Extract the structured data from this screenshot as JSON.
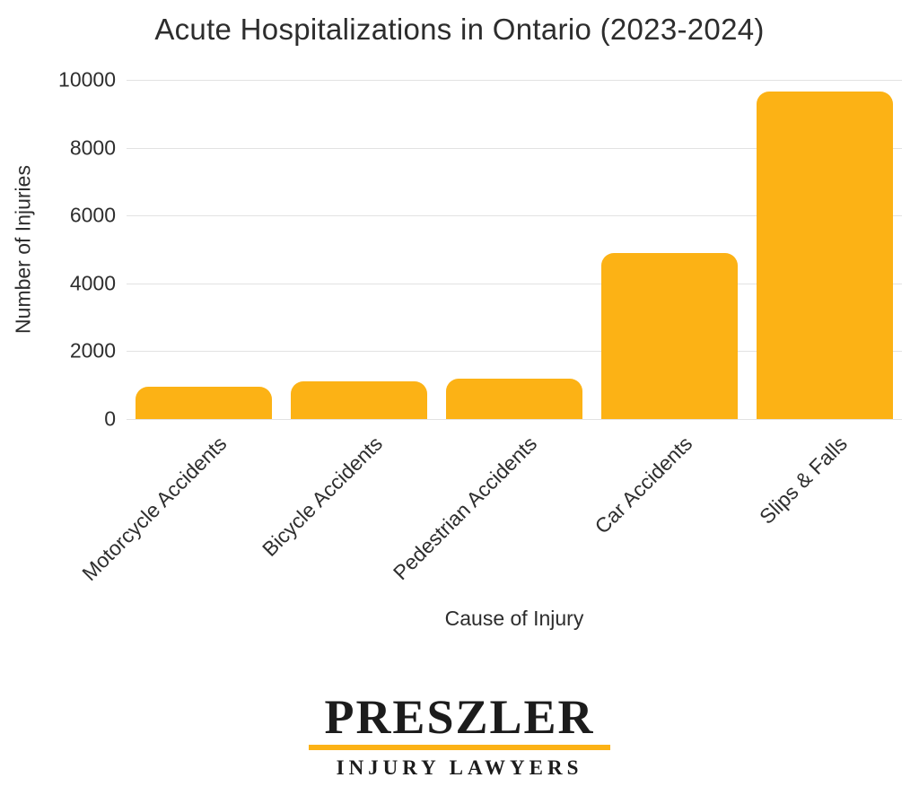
{
  "chart_data": {
    "type": "bar",
    "title": "Acute Hospitalizations in Ontario (2023-2024)",
    "xlabel": "Cause of Injury",
    "ylabel": "Number of Injuries",
    "categories": [
      "Motorcycle Accidents",
      "Bicycle Accidents",
      "Pedestrian Accidents",
      "Car Accidents",
      "Slips & Falls"
    ],
    "values": [
      950,
      1100,
      1200,
      4900,
      9650
    ],
    "ylim": [
      0,
      10000
    ],
    "yticks": [
      0,
      2000,
      4000,
      6000,
      8000,
      10000
    ],
    "grid": true,
    "legend": false,
    "bar_color": "#FCB215",
    "gridline_color": "#E2E2E2",
    "text_color": "#2e2e2e"
  },
  "logo": {
    "name": "PRESZLER",
    "tagline": "INJURY LAWYERS",
    "divider_color": "#FCB215"
  }
}
